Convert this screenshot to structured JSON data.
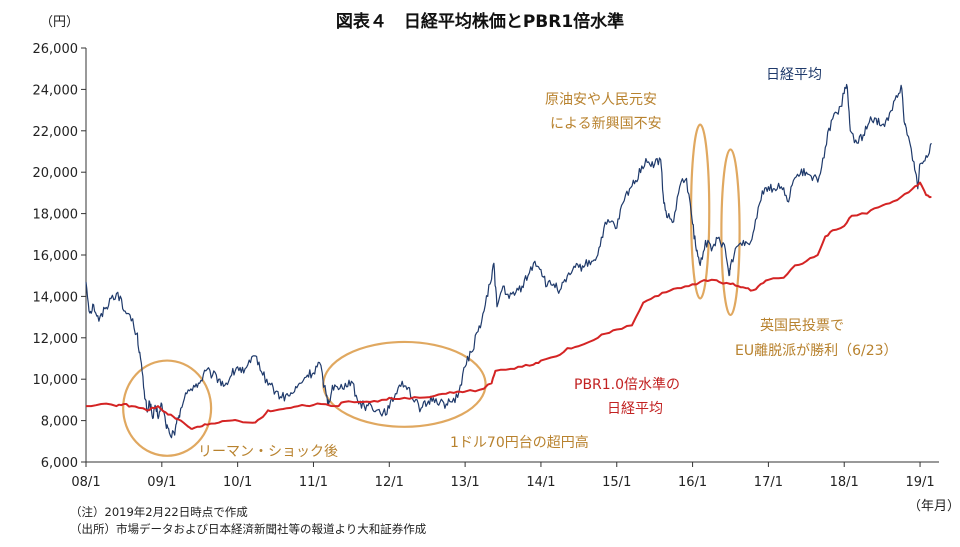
{
  "chart_data": {
    "type": "line",
    "title": "図表４　日経平均株価とPBR1倍水準",
    "y_unit_label": "（円）",
    "x_unit_label": "（年月）",
    "ylim": [
      6000,
      26000
    ],
    "yticks": [
      6000,
      8000,
      10000,
      12000,
      14000,
      16000,
      18000,
      20000,
      22000,
      24000,
      26000
    ],
    "ytick_labels": [
      "6,000",
      "8,000",
      "10,000",
      "12,000",
      "14,000",
      "16,000",
      "18,000",
      "20,000",
      "22,000",
      "24,000",
      "26,000"
    ],
    "xlim": [
      2008.0,
      2019.25
    ],
    "xticks": [
      2008,
      2009,
      2010,
      2011,
      2012,
      2013,
      2014,
      2015,
      2016,
      2017,
      2018,
      2019
    ],
    "xtick_labels": [
      "08/1",
      "09/1",
      "10/1",
      "11/1",
      "12/1",
      "13/1",
      "14/1",
      "15/1",
      "16/1",
      "17/1",
      "18/1",
      "19/1"
    ],
    "grid": false,
    "series": [
      {
        "name": "日経平均",
        "color": "#1f3a6b",
        "points": [
          [
            2008.0,
            14700
          ],
          [
            2008.05,
            13200
          ],
          [
            2008.1,
            13600
          ],
          [
            2008.17,
            12800
          ],
          [
            2008.25,
            13400
          ],
          [
            2008.33,
            13900
          ],
          [
            2008.42,
            14200
          ],
          [
            2008.5,
            13300
          ],
          [
            2008.58,
            13100
          ],
          [
            2008.67,
            12200
          ],
          [
            2008.71,
            11300
          ],
          [
            2008.76,
            9600
          ],
          [
            2008.8,
            8500
          ],
          [
            2008.84,
            8900
          ],
          [
            2008.88,
            8100
          ],
          [
            2008.92,
            8600
          ],
          [
            2008.96,
            8200
          ],
          [
            2009.0,
            8800
          ],
          [
            2009.05,
            7900
          ],
          [
            2009.1,
            7400
          ],
          [
            2009.17,
            7300
          ],
          [
            2009.21,
            8100
          ],
          [
            2009.25,
            8600
          ],
          [
            2009.33,
            9300
          ],
          [
            2009.42,
            9700
          ],
          [
            2009.5,
            9800
          ],
          [
            2009.58,
            10400
          ],
          [
            2009.67,
            10200
          ],
          [
            2009.75,
            10000
          ],
          [
            2009.83,
            9700
          ],
          [
            2009.92,
            10200
          ],
          [
            2010.0,
            10600
          ],
          [
            2010.08,
            10300
          ],
          [
            2010.17,
            10800
          ],
          [
            2010.25,
            11100
          ],
          [
            2010.33,
            10200
          ],
          [
            2010.42,
            9800
          ],
          [
            2010.5,
            9400
          ],
          [
            2010.58,
            9100
          ],
          [
            2010.67,
            9200
          ],
          [
            2010.75,
            9400
          ],
          [
            2010.83,
            9800
          ],
          [
            2010.92,
            10200
          ],
          [
            2011.0,
            10300
          ],
          [
            2011.08,
            10800
          ],
          [
            2011.17,
            9200
          ],
          [
            2011.2,
            8800
          ],
          [
            2011.25,
            9700
          ],
          [
            2011.33,
            9500
          ],
          [
            2011.42,
            9800
          ],
          [
            2011.5,
            9900
          ],
          [
            2011.58,
            9000
          ],
          [
            2011.67,
            8700
          ],
          [
            2011.75,
            8800
          ],
          [
            2011.83,
            8500
          ],
          [
            2011.92,
            8400
          ],
          [
            2012.0,
            8600
          ],
          [
            2012.08,
            9300
          ],
          [
            2012.17,
            9900
          ],
          [
            2012.25,
            9600
          ],
          [
            2012.33,
            8900
          ],
          [
            2012.42,
            8600
          ],
          [
            2012.5,
            8800
          ],
          [
            2012.58,
            9100
          ],
          [
            2012.67,
            8900
          ],
          [
            2012.75,
            8800
          ],
          [
            2012.83,
            8900
          ],
          [
            2012.92,
            9400
          ],
          [
            2013.0,
            10600
          ],
          [
            2013.08,
            11300
          ],
          [
            2013.17,
            12300
          ],
          [
            2013.25,
            13300
          ],
          [
            2013.33,
            14600
          ],
          [
            2013.38,
            15600
          ],
          [
            2013.42,
            13500
          ],
          [
            2013.5,
            14500
          ],
          [
            2013.58,
            13900
          ],
          [
            2013.67,
            14200
          ],
          [
            2013.75,
            14500
          ],
          [
            2013.83,
            15000
          ],
          [
            2013.92,
            15700
          ],
          [
            2014.0,
            15300
          ],
          [
            2014.08,
            14500
          ],
          [
            2014.17,
            14600
          ],
          [
            2014.25,
            14300
          ],
          [
            2014.33,
            14700
          ],
          [
            2014.42,
            15300
          ],
          [
            2014.5,
            15400
          ],
          [
            2014.58,
            15500
          ],
          [
            2014.67,
            15700
          ],
          [
            2014.75,
            16000
          ],
          [
            2014.83,
            17300
          ],
          [
            2014.92,
            17600
          ],
          [
            2015.0,
            17300
          ],
          [
            2015.08,
            18500
          ],
          [
            2015.17,
            19200
          ],
          [
            2015.25,
            19600
          ],
          [
            2015.33,
            20300
          ],
          [
            2015.42,
            20500
          ],
          [
            2015.5,
            20400
          ],
          [
            2015.58,
            20600
          ],
          [
            2015.62,
            18500
          ],
          [
            2015.67,
            17800
          ],
          [
            2015.75,
            17600
          ],
          [
            2015.83,
            19300
          ],
          [
            2015.92,
            19700
          ],
          [
            2016.0,
            17500
          ],
          [
            2016.05,
            16200
          ],
          [
            2016.1,
            15500
          ],
          [
            2016.17,
            16700
          ],
          [
            2016.25,
            16200
          ],
          [
            2016.33,
            16800
          ],
          [
            2016.42,
            16500
          ],
          [
            2016.48,
            15000
          ],
          [
            2016.5,
            15500
          ],
          [
            2016.58,
            16400
          ],
          [
            2016.67,
            16700
          ],
          [
            2016.75,
            16500
          ],
          [
            2016.83,
            17700
          ],
          [
            2016.92,
            19100
          ],
          [
            2017.0,
            19300
          ],
          [
            2017.08,
            19200
          ],
          [
            2017.17,
            19300
          ],
          [
            2017.25,
            18600
          ],
          [
            2017.33,
            19600
          ],
          [
            2017.42,
            19900
          ],
          [
            2017.5,
            20000
          ],
          [
            2017.58,
            19600
          ],
          [
            2017.67,
            19800
          ],
          [
            2017.75,
            21200
          ],
          [
            2017.83,
            22500
          ],
          [
            2017.92,
            22800
          ],
          [
            2018.0,
            23800
          ],
          [
            2018.04,
            24100
          ],
          [
            2018.08,
            22000
          ],
          [
            2018.17,
            21400
          ],
          [
            2018.25,
            21800
          ],
          [
            2018.33,
            22400
          ],
          [
            2018.42,
            22600
          ],
          [
            2018.5,
            22300
          ],
          [
            2018.58,
            22500
          ],
          [
            2018.67,
            23500
          ],
          [
            2018.75,
            24200
          ],
          [
            2018.8,
            22300
          ],
          [
            2018.83,
            21800
          ],
          [
            2018.92,
            20500
          ],
          [
            2018.97,
            19200
          ],
          [
            2019.0,
            20400
          ],
          [
            2019.08,
            20800
          ],
          [
            2019.15,
            21400
          ]
        ]
      },
      {
        "name": "PBR1.0倍水準の日経平均",
        "color": "#d42424",
        "points": [
          [
            2008.0,
            8700
          ],
          [
            2008.2,
            8800
          ],
          [
            2008.4,
            8700
          ],
          [
            2008.5,
            8800
          ],
          [
            2008.6,
            8700
          ],
          [
            2008.75,
            8600
          ],
          [
            2008.83,
            8500
          ],
          [
            2008.95,
            8700
          ],
          [
            2009.05,
            8400
          ],
          [
            2009.15,
            8200
          ],
          [
            2009.25,
            8000
          ],
          [
            2009.35,
            7700
          ],
          [
            2009.4,
            7600
          ],
          [
            2009.5,
            7700
          ],
          [
            2009.6,
            7800
          ],
          [
            2009.75,
            7900
          ],
          [
            2009.9,
            8000
          ],
          [
            2010.0,
            8000
          ],
          [
            2010.2,
            7900
          ],
          [
            2010.3,
            8100
          ],
          [
            2010.4,
            8500
          ],
          [
            2010.5,
            8500
          ],
          [
            2010.65,
            8600
          ],
          [
            2010.8,
            8700
          ],
          [
            2010.95,
            8700
          ],
          [
            2011.1,
            8800
          ],
          [
            2011.3,
            8700
          ],
          [
            2011.4,
            8900
          ],
          [
            2011.6,
            8900
          ],
          [
            2011.75,
            8900
          ],
          [
            2011.9,
            9000
          ],
          [
            2012.0,
            9100
          ],
          [
            2012.2,
            9100
          ],
          [
            2012.4,
            9100
          ],
          [
            2012.6,
            9200
          ],
          [
            2012.75,
            9300
          ],
          [
            2012.9,
            9400
          ],
          [
            2013.0,
            9400
          ],
          [
            2013.2,
            9500
          ],
          [
            2013.35,
            9800
          ],
          [
            2013.4,
            10400
          ],
          [
            2013.6,
            10500
          ],
          [
            2013.75,
            10600
          ],
          [
            2013.9,
            10700
          ],
          [
            2014.0,
            10900
          ],
          [
            2014.2,
            11100
          ],
          [
            2014.35,
            11500
          ],
          [
            2014.5,
            11600
          ],
          [
            2014.7,
            11900
          ],
          [
            2014.85,
            12200
          ],
          [
            2015.0,
            12400
          ],
          [
            2015.2,
            12600
          ],
          [
            2015.35,
            13700
          ],
          [
            2015.5,
            14000
          ],
          [
            2015.65,
            14200
          ],
          [
            2015.8,
            14400
          ],
          [
            2015.95,
            14500
          ],
          [
            2016.1,
            14700
          ],
          [
            2016.25,
            14800
          ],
          [
            2016.35,
            14700
          ],
          [
            2016.5,
            14600
          ],
          [
            2016.6,
            14500
          ],
          [
            2016.7,
            14400
          ],
          [
            2016.8,
            14300
          ],
          [
            2016.9,
            14600
          ],
          [
            2017.0,
            14800
          ],
          [
            2017.2,
            14900
          ],
          [
            2017.35,
            15500
          ],
          [
            2017.5,
            15700
          ],
          [
            2017.65,
            16000
          ],
          [
            2017.75,
            16900
          ],
          [
            2017.85,
            17200
          ],
          [
            2018.0,
            17400
          ],
          [
            2018.1,
            17900
          ],
          [
            2018.3,
            18000
          ],
          [
            2018.45,
            18300
          ],
          [
            2018.6,
            18500
          ],
          [
            2018.75,
            18800
          ],
          [
            2018.9,
            19200
          ],
          [
            2019.0,
            19500
          ],
          [
            2019.08,
            18900
          ],
          [
            2019.15,
            18800
          ]
        ]
      }
    ],
    "annotations": {
      "nikkei_label": "日経平均",
      "pbr_label_line1": "PBR1.0倍水準の",
      "pbr_label_line2": "日経平均",
      "lehman": "リーマン・ショック後",
      "super_yen": "1ドル70円台の超円高",
      "oil_line1": "原油安や人民元安",
      "oil_line2": "による新興国不安",
      "brexit_line1": "英国民投票で",
      "brexit_line2": "EU離脱派が勝利（6/23）"
    },
    "annotation_color": "#e0a860"
  },
  "notes": {
    "note1": "（注）2019年2月22日時点で作成",
    "note2": "（出所）市場データおよび日本経済新聞社等の報道より大和証券作成"
  }
}
